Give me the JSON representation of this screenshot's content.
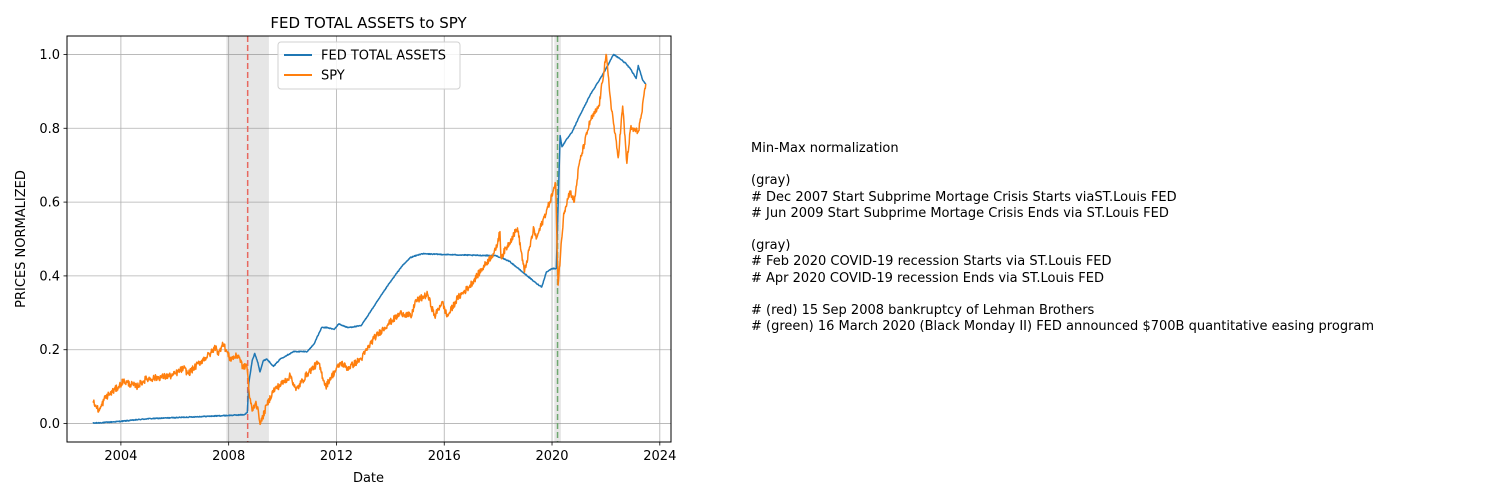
{
  "chart_data": {
    "type": "line",
    "title": "FED TOTAL ASSETS to SPY",
    "xlabel": "Date",
    "ylabel": "PRICES NORMALIZED",
    "xlim": [
      "2002-01-01",
      "2024-06-01"
    ],
    "ylim": [
      -0.05,
      1.05
    ],
    "x_ticks": [
      "2004",
      "2008",
      "2012",
      "2016",
      "2020",
      "2024"
    ],
    "y_ticks": [
      "0.0",
      "0.2",
      "0.4",
      "0.6",
      "0.8",
      "1.0"
    ],
    "grid": true,
    "legend_position": "upper center",
    "series": [
      {
        "name": "FED TOTAL ASSETS",
        "color": "#1f77b4",
        "points": [
          [
            "2002-12-18",
            0.001
          ],
          [
            "2003-06-01",
            0.003
          ],
          [
            "2004-01-01",
            0.006
          ],
          [
            "2004-06-01",
            0.009
          ],
          [
            "2005-01-01",
            0.013
          ],
          [
            "2006-01-01",
            0.016
          ],
          [
            "2007-01-01",
            0.019
          ],
          [
            "2008-01-01",
            0.022
          ],
          [
            "2008-08-01",
            0.024
          ],
          [
            "2008-09-10",
            0.03
          ],
          [
            "2008-10-01",
            0.11
          ],
          [
            "2008-11-15",
            0.17
          ],
          [
            "2008-12-20",
            0.19
          ],
          [
            "2009-02-01",
            0.165
          ],
          [
            "2009-03-01",
            0.14
          ],
          [
            "2009-04-15",
            0.17
          ],
          [
            "2009-06-01",
            0.175
          ],
          [
            "2009-09-01",
            0.155
          ],
          [
            "2009-12-01",
            0.175
          ],
          [
            "2010-03-01",
            0.185
          ],
          [
            "2010-06-01",
            0.195
          ],
          [
            "2010-12-01",
            0.195
          ],
          [
            "2011-03-01",
            0.215
          ],
          [
            "2011-06-15",
            0.26
          ],
          [
            "2011-09-01",
            0.26
          ],
          [
            "2011-12-01",
            0.255
          ],
          [
            "2012-02-01",
            0.27
          ],
          [
            "2012-06-01",
            0.26
          ],
          [
            "2012-12-01",
            0.265
          ],
          [
            "2013-06-01",
            0.32
          ],
          [
            "2013-12-01",
            0.375
          ],
          [
            "2014-06-01",
            0.425
          ],
          [
            "2014-10-01",
            0.45
          ],
          [
            "2015-03-01",
            0.46
          ],
          [
            "2016-01-01",
            0.458
          ],
          [
            "2017-01-01",
            0.456
          ],
          [
            "2017-12-01",
            0.455
          ],
          [
            "2018-06-01",
            0.44
          ],
          [
            "2019-01-01",
            0.405
          ],
          [
            "2019-06-01",
            0.38
          ],
          [
            "2019-08-15",
            0.37
          ],
          [
            "2019-10-15",
            0.41
          ],
          [
            "2020-01-01",
            0.42
          ],
          [
            "2020-02-28",
            0.42
          ],
          [
            "2020-03-25",
            0.6
          ],
          [
            "2020-04-20",
            0.78
          ],
          [
            "2020-05-15",
            0.75
          ],
          [
            "2020-07-01",
            0.765
          ],
          [
            "2020-10-01",
            0.79
          ],
          [
            "2021-01-01",
            0.83
          ],
          [
            "2021-06-01",
            0.89
          ],
          [
            "2021-12-01",
            0.95
          ],
          [
            "2022-04-15",
            1.0
          ],
          [
            "2022-07-01",
            0.99
          ],
          [
            "2022-10-01",
            0.975
          ],
          [
            "2022-12-01",
            0.96
          ],
          [
            "2023-02-15",
            0.935
          ],
          [
            "2023-03-15",
            0.97
          ],
          [
            "2023-04-15",
            0.95
          ],
          [
            "2023-05-15",
            0.93
          ],
          [
            "2023-06-25",
            0.92
          ]
        ]
      },
      {
        "name": "SPY",
        "color": "#ff7f0e",
        "points": [
          [
            "2002-12-18",
            0.06
          ],
          [
            "2003-02-01",
            0.045
          ],
          [
            "2003-03-15",
            0.035
          ],
          [
            "2003-06-01",
            0.07
          ],
          [
            "2003-12-01",
            0.1
          ],
          [
            "2004-02-01",
            0.115
          ],
          [
            "2004-08-01",
            0.1
          ],
          [
            "2004-12-01",
            0.12
          ],
          [
            "2005-06-01",
            0.125
          ],
          [
            "2005-12-01",
            0.13
          ],
          [
            "2006-05-01",
            0.15
          ],
          [
            "2006-07-01",
            0.135
          ],
          [
            "2006-12-01",
            0.165
          ],
          [
            "2007-05-01",
            0.19
          ],
          [
            "2007-07-15",
            0.21
          ],
          [
            "2007-08-15",
            0.185
          ],
          [
            "2007-10-10",
            0.22
          ],
          [
            "2008-01-20",
            0.175
          ],
          [
            "2008-05-15",
            0.185
          ],
          [
            "2008-07-15",
            0.15
          ],
          [
            "2008-09-01",
            0.16
          ],
          [
            "2008-09-15",
            0.135
          ],
          [
            "2008-10-10",
            0.07
          ],
          [
            "2008-11-20",
            0.035
          ],
          [
            "2009-01-05",
            0.06
          ],
          [
            "2009-03-09",
            0.0
          ],
          [
            "2009-06-01",
            0.05
          ],
          [
            "2009-09-01",
            0.09
          ],
          [
            "2010-01-01",
            0.11
          ],
          [
            "2010-04-20",
            0.13
          ],
          [
            "2010-07-01",
            0.09
          ],
          [
            "2010-12-01",
            0.135
          ],
          [
            "2011-04-30",
            0.165
          ],
          [
            "2011-08-10",
            0.1
          ],
          [
            "2011-10-01",
            0.12
          ],
          [
            "2012-03-01",
            0.165
          ],
          [
            "2012-06-01",
            0.15
          ],
          [
            "2012-12-01",
            0.175
          ],
          [
            "2013-05-20",
            0.23
          ],
          [
            "2013-12-01",
            0.27
          ],
          [
            "2014-06-01",
            0.3
          ],
          [
            "2014-10-15",
            0.29
          ],
          [
            "2014-12-01",
            0.33
          ],
          [
            "2015-05-20",
            0.35
          ],
          [
            "2015-08-25",
            0.29
          ],
          [
            "2015-12-01",
            0.33
          ],
          [
            "2016-02-11",
            0.29
          ],
          [
            "2016-07-01",
            0.34
          ],
          [
            "2016-12-01",
            0.37
          ],
          [
            "2017-06-01",
            0.42
          ],
          [
            "2017-12-01",
            0.47
          ],
          [
            "2018-01-26",
            0.52
          ],
          [
            "2018-02-08",
            0.45
          ],
          [
            "2018-09-20",
            0.53
          ],
          [
            "2018-12-24",
            0.41
          ],
          [
            "2019-04-30",
            0.53
          ],
          [
            "2019-06-01",
            0.5
          ],
          [
            "2019-12-01",
            0.6
          ],
          [
            "2020-02-19",
            0.65
          ],
          [
            "2020-03-23",
            0.375
          ],
          [
            "2020-06-08",
            0.57
          ],
          [
            "2020-09-01",
            0.63
          ],
          [
            "2020-10-30",
            0.6
          ],
          [
            "2021-01-01",
            0.7
          ],
          [
            "2021-06-01",
            0.82
          ],
          [
            "2021-09-30",
            0.86
          ],
          [
            "2022-01-03",
            1.0
          ],
          [
            "2022-03-08",
            0.87
          ],
          [
            "2022-06-16",
            0.72
          ],
          [
            "2022-08-16",
            0.86
          ],
          [
            "2022-10-12",
            0.705
          ],
          [
            "2022-12-01",
            0.8
          ],
          [
            "2023-03-13",
            0.79
          ],
          [
            "2023-05-01",
            0.84
          ],
          [
            "2023-06-25",
            0.92
          ]
        ]
      }
    ],
    "shaded_regions": [
      {
        "start": "2007-12-01",
        "end": "2009-06-30",
        "color": "gray"
      },
      {
        "start": "2020-02-01",
        "end": "2020-04-30",
        "color": "gray"
      }
    ],
    "vertical_lines": [
      {
        "date": "2008-09-15",
        "color": "#e8685f",
        "style": "dashed"
      },
      {
        "date": "2020-03-16",
        "color": "#6fa870",
        "style": "dashed"
      }
    ]
  },
  "notes": {
    "lines": [
      "Min-Max normalization",
      "",
      "(gray)",
      "# Dec 2007 Start Subprime Mortage Crisis Starts viaST.Louis FED",
      "# Jun 2009 Start Subprime Mortage Crisis Ends via ST.Louis FED",
      "",
      "(gray)",
      "# Feb 2020 COVID-19 recession Starts via ST.Louis FED",
      "# Apr 2020 COVID-19 recession Ends via ST.Louis FED",
      "",
      "# (red) 15 Sep 2008 bankruptcy of Lehman Brothers",
      "# (green) 16 March 2020 (Black Monday II) FED announced $700B quantitative easing program"
    ]
  }
}
